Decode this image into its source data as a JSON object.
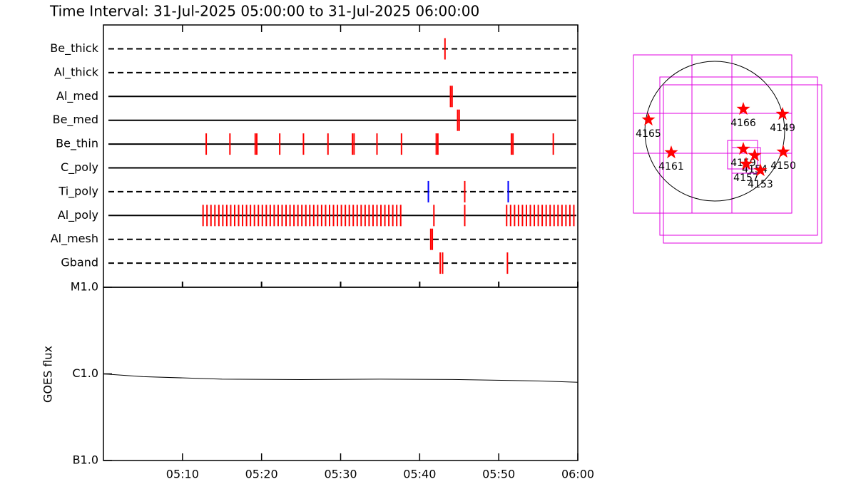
{
  "chart_data": [
    {
      "type": "timeline",
      "title": "Time Interval: 31-Jul-2025 05:00:00 to 31-Jul-2025 06:00:00",
      "xlim": [
        0,
        60
      ],
      "rows": [
        {
          "name": "Be_thick",
          "dashed": true,
          "events": [
            {
              "color": "#ff0000",
              "x": [
                43.2
              ]
            }
          ]
        },
        {
          "name": "Al_thick",
          "dashed": true,
          "events": []
        },
        {
          "name": "Al_med",
          "dashed": false,
          "events": [
            {
              "color": "#ff0000",
              "x": [
                43.9,
                44.1
              ]
            }
          ]
        },
        {
          "name": "Be_med",
          "dashed": false,
          "events": [
            {
              "color": "#ff0000",
              "x": [
                44.8,
                45.0
              ]
            }
          ]
        },
        {
          "name": "Be_thin",
          "dashed": false,
          "events": [
            {
              "color": "#ff0000",
              "x": [
                13.0,
                16.0,
                19.2,
                19.4,
                22.3,
                25.3,
                28.4,
                31.5,
                31.7,
                34.6,
                37.7,
                42.1,
                42.3,
                51.6,
                51.8,
                56.9
              ]
            }
          ]
        },
        {
          "name": "C_poly",
          "dashed": false,
          "events": []
        },
        {
          "name": "Ti_poly",
          "dashed": true,
          "events": [
            {
              "color": "#0000ff",
              "x": [
                41.1,
                51.2
              ]
            },
            {
              "color": "#ff0000",
              "x": [
                45.7
              ]
            }
          ]
        },
        {
          "name": "Al_poly",
          "dashed": false,
          "events": [
            {
              "color": "#ff0000",
              "x": [
                12.6,
                13.1,
                13.6,
                14.1,
                14.6,
                15.1,
                15.6,
                16.1,
                16.6,
                17.1,
                17.6,
                18.1,
                18.6,
                19.1,
                19.6,
                20.1,
                20.6,
                21.1,
                21.6,
                22.1,
                22.6,
                23.1,
                23.6,
                24.1,
                24.6,
                25.1,
                25.6,
                26.1,
                26.6,
                27.1,
                27.6,
                28.1,
                28.6,
                29.1,
                29.6,
                30.1,
                30.6,
                31.1,
                31.6,
                32.1,
                32.6,
                33.1,
                33.6,
                34.1,
                34.6,
                35.1,
                35.6,
                36.1,
                36.6,
                37.1,
                37.6,
                41.8,
                45.7,
                51.0,
                51.5,
                52.0,
                52.5,
                53.0,
                53.5,
                54.0,
                54.5,
                55.0,
                55.5,
                56.0,
                56.5,
                57.0,
                57.5,
                58.0,
                58.5,
                59.0,
                59.5
              ]
            }
          ]
        },
        {
          "name": "Al_mesh",
          "dashed": true,
          "events": [
            {
              "color": "#ff0000",
              "x": [
                41.4,
                41.6
              ]
            }
          ]
        },
        {
          "name": "Gband",
          "dashed": true,
          "events": [
            {
              "color": "#ff0000",
              "x": [
                42.6,
                42.9,
                51.1
              ]
            }
          ]
        }
      ]
    },
    {
      "type": "line",
      "ylabel": "GOES flux",
      "log": true,
      "color": "#000000",
      "x": [
        0,
        5,
        15,
        25,
        35,
        45,
        55,
        60
      ],
      "values": [
        1e-06,
        9.3e-07,
        8.7e-07,
        8.6e-07,
        8.7e-07,
        8.6e-07,
        8.3e-07,
        8e-07
      ],
      "xlim": [
        0,
        60
      ],
      "xticks": [
        {
          "value": 10,
          "label": "05:10"
        },
        {
          "value": 20,
          "label": "05:20"
        },
        {
          "value": 30,
          "label": "05:30"
        },
        {
          "value": 40,
          "label": "05:40"
        },
        {
          "value": 50,
          "label": "05:50"
        },
        {
          "value": 60,
          "label": "06:00"
        }
      ],
      "ylim": [
        1e-07,
        1e-05
      ],
      "yticks": [
        {
          "value": 1e-07,
          "label": "B1.0"
        },
        {
          "value": 1e-06,
          "label": "C1.0"
        },
        {
          "value": 1e-05,
          "label": "M1.0"
        }
      ]
    },
    {
      "type": "map",
      "solar_radius": 960,
      "color": "#ff0000",
      "regions": [
        {
          "label": "4165",
          "x": -911,
          "y": 157
        },
        {
          "label": "4161",
          "x": -598,
          "y": -294
        },
        {
          "label": "4166",
          "x": 392,
          "y": 304
        },
        {
          "label": "4149",
          "x": 931,
          "y": 235
        },
        {
          "label": "4150",
          "x": 941,
          "y": -284
        },
        {
          "label": "4159",
          "x": 392,
          "y": -245
        },
        {
          "label": "4154",
          "x": 549,
          "y": -333
        },
        {
          "label": "4157",
          "x": 431,
          "y": -451
        },
        {
          "label": "4153",
          "x": 627,
          "y": -539
        }
      ]
    }
  ]
}
